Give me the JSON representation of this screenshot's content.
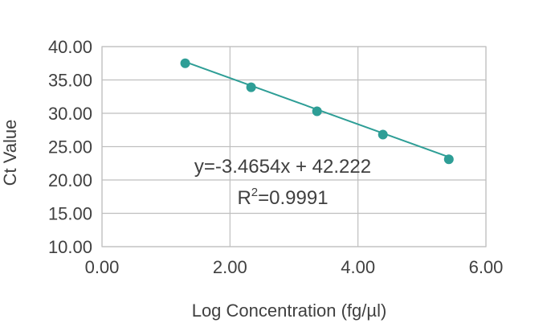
{
  "chart_data": {
    "type": "scatter",
    "xlabel": "Log Concentration (fg/µl)",
    "ylabel": "Ct Value",
    "xlim": [
      0,
      6
    ],
    "ylim": [
      10,
      40
    ],
    "x_ticks": [
      "0.00",
      "2.00",
      "4.00",
      "6.00"
    ],
    "y_ticks": [
      "10.00",
      "15.00",
      "20.00",
      "25.00",
      "30.00",
      "35.00",
      "40.00"
    ],
    "x_tick_values": [
      0,
      2,
      4,
      6
    ],
    "y_tick_values": [
      10,
      15,
      20,
      25,
      30,
      35,
      40
    ],
    "grid": true,
    "points": [
      {
        "x": 1.3,
        "y": 37.5
      },
      {
        "x": 2.33,
        "y": 33.9
      },
      {
        "x": 3.36,
        "y": 30.3
      },
      {
        "x": 4.39,
        "y": 26.8
      },
      {
        "x": 5.42,
        "y": 23.1
      }
    ],
    "trendline": {
      "slope": -3.4654,
      "intercept": 42.222,
      "x_range": [
        1.3,
        5.42
      ]
    },
    "equation_label": "y=-3.4654x + 42.222",
    "r2_label_prefix": "R",
    "r2_label_sup": "2",
    "r2_label_value": "=0.9991",
    "colors": {
      "marker": "#2e9e96",
      "line": "#2e9e96",
      "grid": "#bfbfbf",
      "text": "#404040"
    }
  }
}
